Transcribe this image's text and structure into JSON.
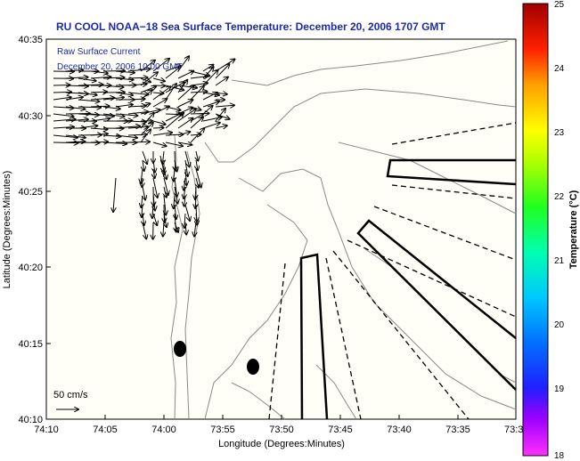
{
  "title": "RU COOL  NOAA−18  Sea Surface Temperature:  December 20, 2006 1707 GMT",
  "legend": {
    "line1": "Raw Surface Current",
    "line2": "December 20, 2006 10:00 GMT"
  },
  "axes": {
    "xlabel": "Longitude (Degrees:Minutes)",
    "ylabel": "Latitude (Degrees:Minutes)",
    "x_ticks": [
      "74:10",
      "74:05",
      "74:00",
      "73:55",
      "73:50",
      "73:45",
      "73:40",
      "73:35",
      "73:3"
    ],
    "y_ticks": [
      "40:35",
      "40:30",
      "40:25",
      "40:20",
      "40:15",
      "40:10"
    ]
  },
  "scale_label": "50 cm/s",
  "colorbar": {
    "label": "Temperature (°C)",
    "ticks": [
      "25",
      "24",
      "23",
      "22",
      "21",
      "20",
      "19",
      "18"
    ],
    "colors": [
      "#ff00ff",
      "#8800ff",
      "#0000ff",
      "#0088ff",
      "#00ffff",
      "#00ff88",
      "#00ff00",
      "#88ff00",
      "#ffff00",
      "#ffaa00",
      "#ff5500",
      "#ff0000",
      "#880000"
    ]
  },
  "colors": {
    "map_background": "#fffff8",
    "contour": "#8a8a8a",
    "title_blue": "#1c2aa8"
  }
}
